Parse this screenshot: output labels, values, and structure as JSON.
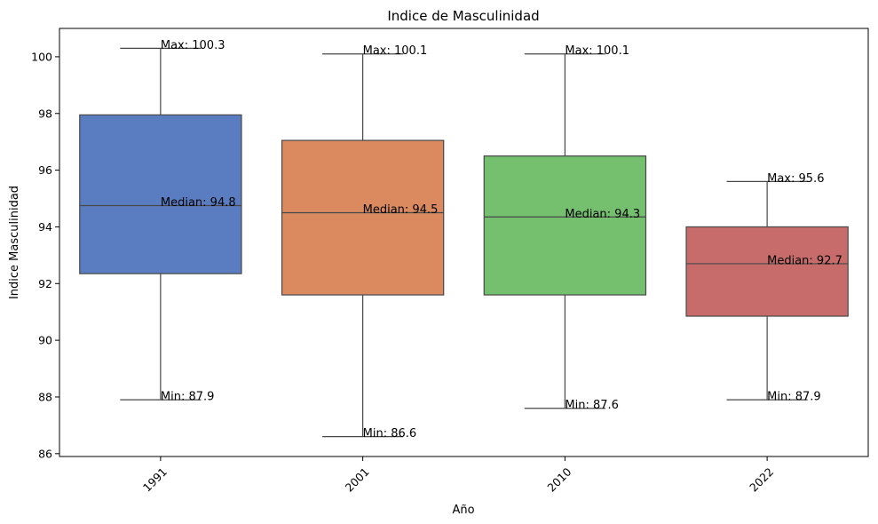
{
  "chart_data": {
    "type": "box",
    "title": "Indice de Masculinidad",
    "xlabel": "Año",
    "ylabel": "Indice Masculinidad",
    "categories": [
      "1991",
      "2001",
      "2010",
      "2022"
    ],
    "colors": [
      "#5a7dc2",
      "#da8a5e",
      "#74c06f",
      "#c76c6b"
    ],
    "ylim": [
      85.9,
      101.0
    ],
    "yticks": [
      86,
      88,
      90,
      92,
      94,
      96,
      98,
      100
    ],
    "grid": false,
    "boxes": [
      {
        "category": "1991",
        "min": 87.9,
        "q1": 92.35,
        "median": 94.75,
        "q3": 97.95,
        "max": 100.3
      },
      {
        "category": "2001",
        "min": 86.6,
        "q1": 91.6,
        "median": 94.5,
        "q3": 97.05,
        "max": 100.1
      },
      {
        "category": "2010",
        "min": 87.6,
        "q1": 91.6,
        "median": 94.35,
        "q3": 96.5,
        "max": 100.1
      },
      {
        "category": "2022",
        "min": 87.9,
        "q1": 90.85,
        "median": 92.7,
        "q3": 94.0,
        "max": 95.6
      }
    ],
    "annotations": [
      {
        "category": "1991",
        "kind": "max",
        "text": "Max: 100.3"
      },
      {
        "category": "1991",
        "kind": "median",
        "text": "Median: 94.8"
      },
      {
        "category": "1991",
        "kind": "min",
        "text": "Min: 87.9"
      },
      {
        "category": "2001",
        "kind": "max",
        "text": "Max: 100.1"
      },
      {
        "category": "2001",
        "kind": "median",
        "text": "Median: 94.5"
      },
      {
        "category": "2001",
        "kind": "min",
        "text": "Min: 86.6"
      },
      {
        "category": "2010",
        "kind": "max",
        "text": "Max: 100.1"
      },
      {
        "category": "2010",
        "kind": "median",
        "text": "Median: 94.3"
      },
      {
        "category": "2010",
        "kind": "min",
        "text": "Min: 87.6"
      },
      {
        "category": "2022",
        "kind": "max",
        "text": "Max: 95.6"
      },
      {
        "category": "2022",
        "kind": "median",
        "text": "Median: 92.7"
      },
      {
        "category": "2022",
        "kind": "min",
        "text": "Min: 87.9"
      }
    ]
  }
}
